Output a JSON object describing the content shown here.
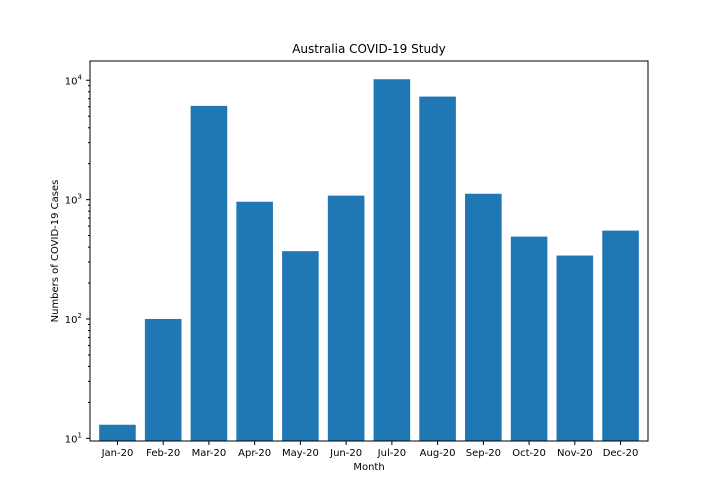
{
  "chart_data": {
    "type": "bar",
    "title": "Australia COVID-19 Study",
    "xlabel": "Month",
    "ylabel": "Numbers of COVID-19 Cases",
    "yscale": "log",
    "ylim": [
      9.5,
      14500
    ],
    "grid": false,
    "color": "#1f77b4",
    "categories": [
      "Jan-20",
      "Feb-20",
      "Mar-20",
      "Apr-20",
      "May-20",
      "Jun-20",
      "Jul-20",
      "Aug-20",
      "Sep-20",
      "Oct-20",
      "Nov-20",
      "Dec-20"
    ],
    "values": [
      13,
      100,
      6100,
      960,
      370,
      1080,
      10200,
      7300,
      1120,
      490,
      340,
      550
    ],
    "yticks": [
      {
        "base": "10",
        "exp": "1"
      },
      {
        "base": "10",
        "exp": "2"
      },
      {
        "base": "10",
        "exp": "3"
      },
      {
        "base": "10",
        "exp": "4"
      }
    ]
  }
}
